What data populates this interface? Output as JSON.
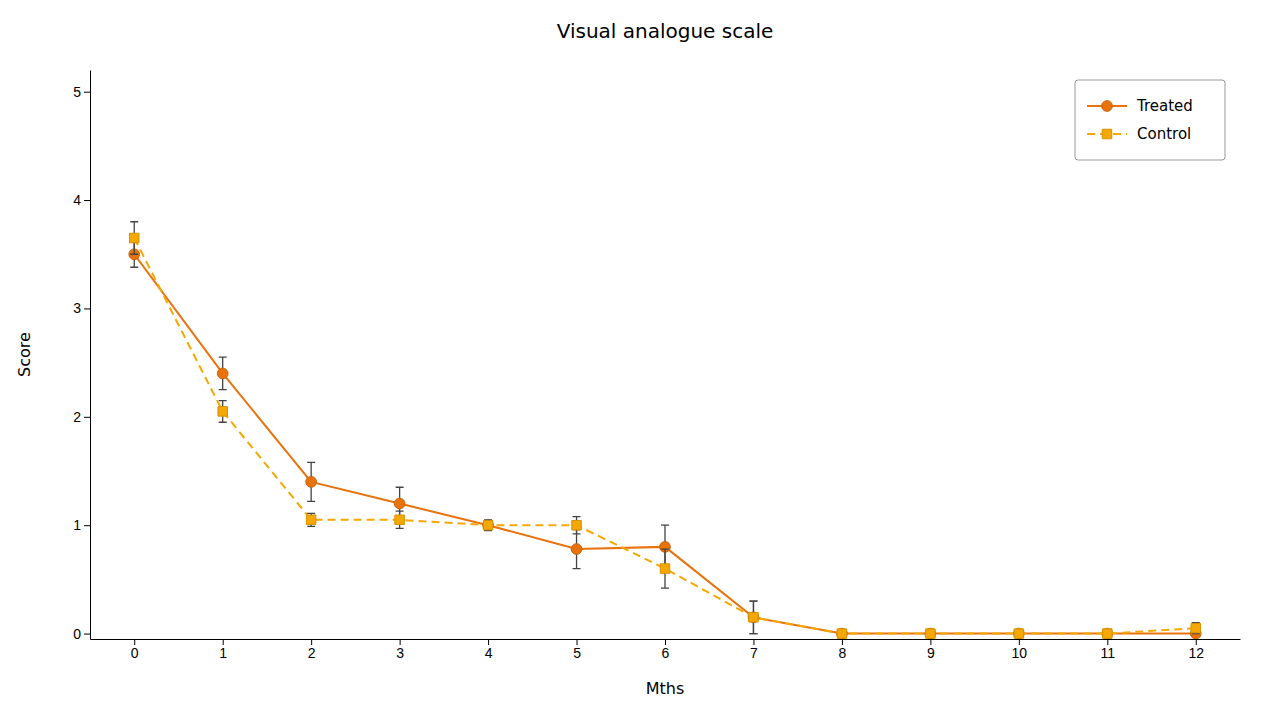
{
  "chart_data": {
    "type": "line",
    "title": "Visual analogue scale",
    "xlabel": "Mths",
    "ylabel": "Score",
    "x": [
      0,
      1,
      2,
      3,
      4,
      5,
      6,
      7,
      8,
      9,
      10,
      11,
      12
    ],
    "series": [
      {
        "name": "Treated",
        "color": "#E8720C",
        "marker": "circle",
        "line_style": "solid",
        "values": [
          3.5,
          2.4,
          1.4,
          1.2,
          1.0,
          0.78,
          0.8,
          0.15,
          0.0,
          0.0,
          0.0,
          0.0,
          0.0
        ],
        "errors": [
          0.12,
          0.15,
          0.18,
          0.15,
          0.04,
          0.18,
          0.2,
          0.15,
          0.0,
          0.0,
          0.0,
          0.0,
          0.0
        ]
      },
      {
        "name": "Control",
        "color": "#F5A800",
        "marker": "square",
        "line_style": "dashed",
        "values": [
          3.65,
          2.05,
          1.05,
          1.05,
          1.0,
          1.0,
          0.6,
          0.15,
          0.0,
          0.0,
          0.0,
          0.0,
          0.05
        ],
        "errors": [
          0.15,
          0.1,
          0.06,
          0.08,
          0.05,
          0.08,
          0.18,
          0.15,
          0.0,
          0.0,
          0.0,
          0.0,
          0.05
        ]
      }
    ],
    "xlim": [
      -0.5,
      12.5
    ],
    "ylim": [
      -0.05,
      5.2
    ],
    "xticks": [
      0,
      1,
      2,
      3,
      4,
      5,
      6,
      7,
      8,
      9,
      10,
      11,
      12
    ],
    "yticks": [
      0,
      1,
      2,
      3,
      4,
      5
    ],
    "grid": false,
    "legend": "upper right"
  }
}
